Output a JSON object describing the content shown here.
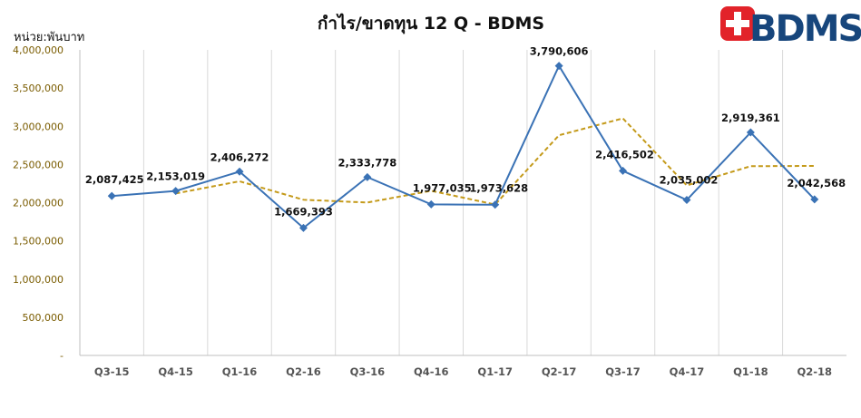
{
  "logo": {
    "text": "BDMS",
    "cross_color": "#e2232a",
    "text_color": "#17467c"
  },
  "chart_data": {
    "type": "line",
    "title": "กำไร/ขาดทุน 12 Q - BDMS",
    "ylabel": "หน่วย:พันบาท",
    "categories": [
      "Q3-15",
      "Q4-15",
      "Q1-16",
      "Q2-16",
      "Q3-16",
      "Q4-16",
      "Q1-17",
      "Q2-17",
      "Q3-17",
      "Q4-17",
      "Q1-18",
      "Q2-18"
    ],
    "ylim": [
      0,
      4000000
    ],
    "yticks": [
      {
        "value": 0,
        "label": "-"
      },
      {
        "value": 500000,
        "label": "500,000"
      },
      {
        "value": 1000000,
        "label": "1,000,000"
      },
      {
        "value": 1500000,
        "label": "1,500,000"
      },
      {
        "value": 2000000,
        "label": "2,000,000"
      },
      {
        "value": 2500000,
        "label": "2,500,000"
      },
      {
        "value": 3000000,
        "label": "3,000,000"
      },
      {
        "value": 3500000,
        "label": "3,500,000"
      },
      {
        "value": 4000000,
        "label": "4,000,000"
      }
    ],
    "grid": "vertical",
    "series": [
      {
        "style": "solid-markers",
        "color": "#3a72b5",
        "values": [
          2087425,
          2153019,
          2406272,
          1669393,
          2333778,
          1977035,
          1973628,
          3790606,
          2416502,
          2035002,
          2919361,
          2042568
        ],
        "labels": [
          "2,087,425",
          "2,153,019",
          "2,406,272",
          "1,669,393",
          "2,333,778",
          "1,977,035",
          "1,973,628",
          "3,790,606",
          "2,416,502",
          "2,035,002",
          "2,919,361",
          "2,042,568"
        ]
      },
      {
        "style": "dashed-trend",
        "color": "#c49a1a",
        "values": [
          null,
          2120222,
          2279646,
          2037833,
          2001586,
          2155407,
          1975332,
          2882117,
          3103554,
          2225752,
          2477182,
          2480965
        ]
      }
    ]
  }
}
